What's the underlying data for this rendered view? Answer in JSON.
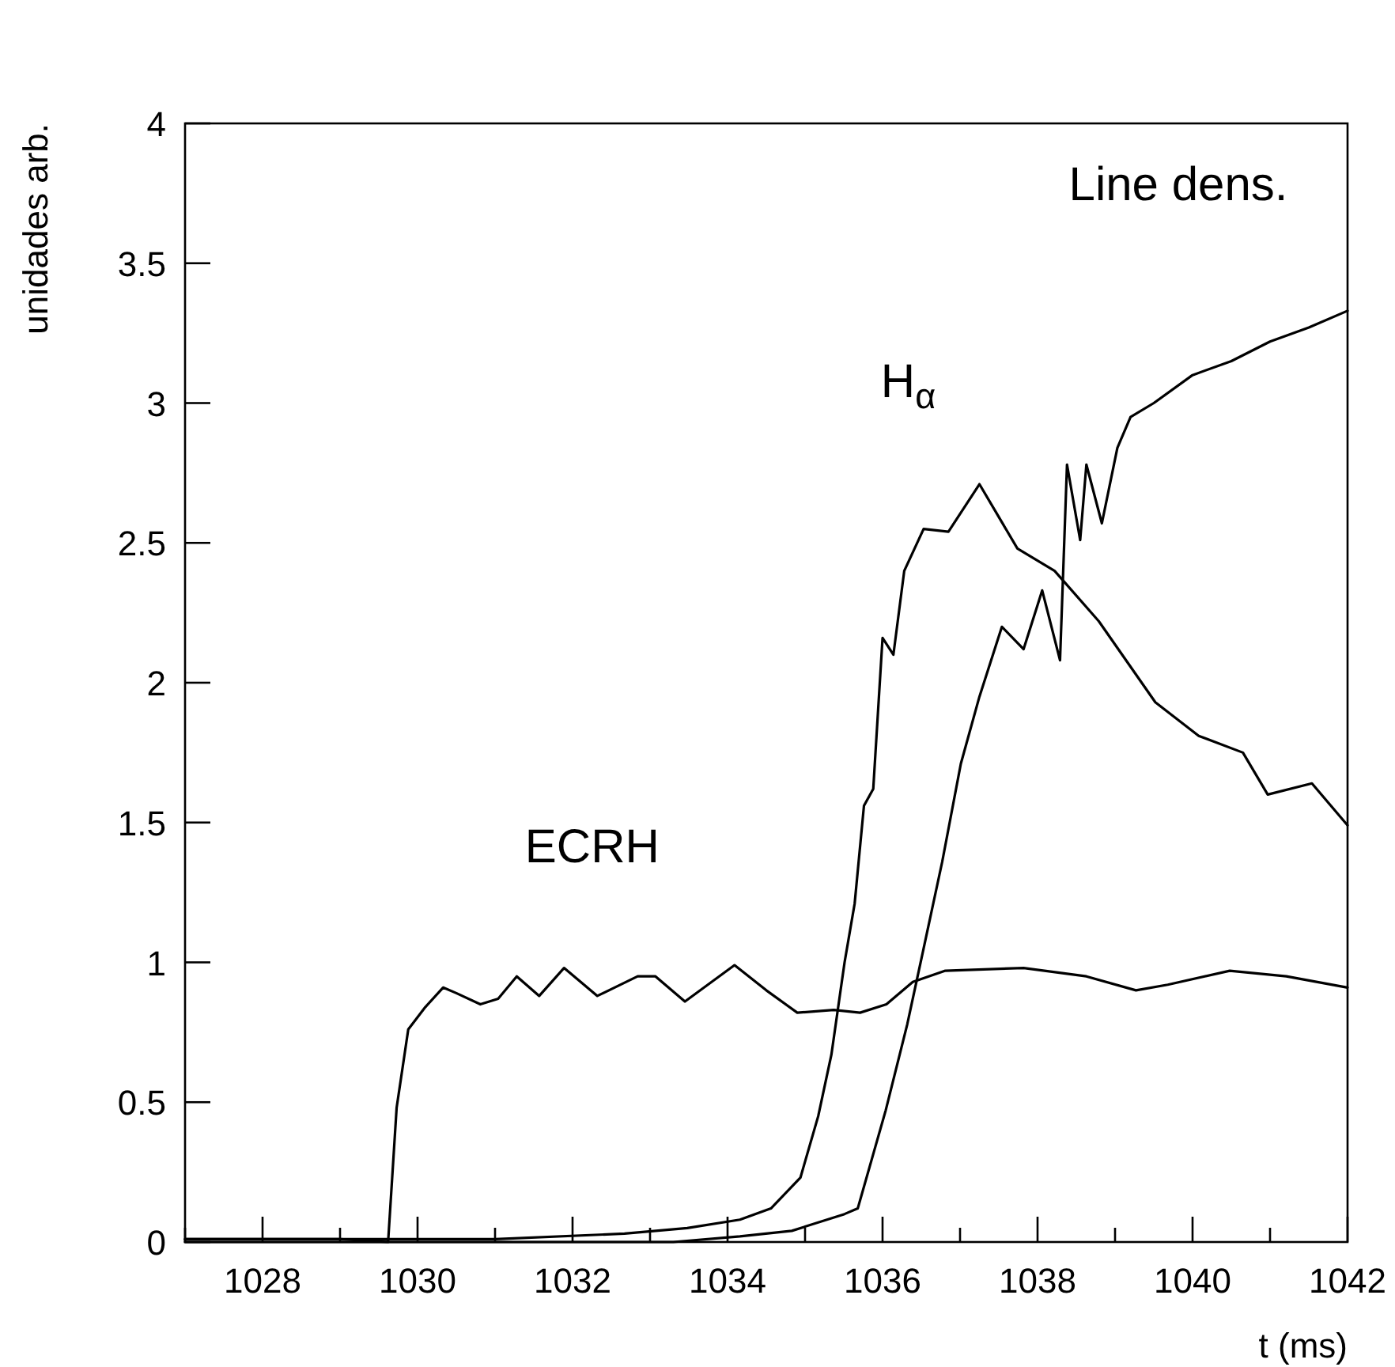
{
  "chart_data": {
    "type": "line",
    "xlabel": "t (ms)",
    "ylabel": "unidades arb.",
    "xlim": [
      1027,
      1042
    ],
    "ylim": [
      0,
      4
    ],
    "xticks": [
      {
        "value": 1027,
        "label": null
      },
      1028,
      {
        "value": 1029,
        "label": null
      },
      1030,
      {
        "value": 1031,
        "label": null
      },
      1032,
      {
        "value": 1033,
        "label": null
      },
      1034,
      {
        "value": 1035,
        "label": null
      },
      1036,
      {
        "value": 1037,
        "label": null
      },
      1038,
      {
        "value": 1039,
        "label": null
      },
      1040,
      {
        "value": 1041,
        "label": null
      },
      {
        "value": 1042,
        "label": "1042"
      }
    ],
    "yticks": [
      0,
      0.5,
      1,
      1.5,
      2,
      2.5,
      3,
      3.5,
      4
    ],
    "grid": false,
    "legend": false,
    "marker": "none",
    "line_style": "solid",
    "series": [
      {
        "name": "ECRH",
        "color": "#000000",
        "x": [
          1027,
          1028,
          1029,
          1029.62,
          1029.73,
          1029.88,
          1030.1,
          1030.33,
          1030.5,
          1030.81,
          1031.04,
          1031.28,
          1031.57,
          1031.89,
          1032.32,
          1032.84,
          1033.07,
          1033.45,
          1034.09,
          1034.5,
          1034.9,
          1035.37,
          1035.71,
          1036.05,
          1036.39,
          1036.81,
          1037.82,
          1038.63,
          1039.27,
          1039.68,
          1040.48,
          1041.21,
          1042
        ],
        "values": [
          0.01,
          0.01,
          0.01,
          0,
          0.48,
          0.76,
          0.84,
          0.91,
          0.89,
          0.85,
          0.87,
          0.95,
          0.88,
          0.98,
          0.88,
          0.95,
          0.95,
          0.86,
          0.99,
          0.9,
          0.82,
          0.83,
          0.82,
          0.85,
          0.93,
          0.97,
          0.98,
          0.95,
          0.9,
          0.92,
          0.97,
          0.95,
          0.91
        ]
      },
      {
        "name": "H$_{α}$",
        "color": "#000000",
        "x": [
          1027,
          1029,
          1031,
          1032.67,
          1033.48,
          1034.16,
          1034.56,
          1034.94,
          1035.17,
          1035.34,
          1035.51,
          1035.64,
          1035.76,
          1035.88,
          1036,
          1036.14,
          1036.28,
          1036.53,
          1036.85,
          1037.25,
          1037.74,
          1038.22,
          1038.79,
          1039.52,
          1040.08,
          1040.65,
          1040.97,
          1041.54,
          1042
        ],
        "values": [
          0.01,
          0.01,
          0.01,
          0.03,
          0.05,
          0.08,
          0.12,
          0.23,
          0.45,
          0.67,
          1,
          1.21,
          1.56,
          1.62,
          2.16,
          2.1,
          2.4,
          2.55,
          2.54,
          2.71,
          2.48,
          2.4,
          2.22,
          1.93,
          1.81,
          1.75,
          1.6,
          1.64,
          1.49
        ]
      },
      {
        "name": "Line dens.",
        "color": "#000000",
        "x": [
          1027,
          1030,
          1033.3,
          1034.16,
          1034.83,
          1035.51,
          1035.68,
          1036.04,
          1036.32,
          1036.53,
          1036.77,
          1037.01,
          1037.25,
          1037.54,
          1037.82,
          1038.06,
          1038.29,
          1038.38,
          1038.55,
          1038.63,
          1038.83,
          1039.03,
          1039.2,
          1039.5,
          1040,
          1040.5,
          1041,
          1041.5,
          1042
        ],
        "values": [
          0,
          0,
          0,
          0.02,
          0.04,
          0.1,
          0.12,
          0.47,
          0.78,
          1.05,
          1.36,
          1.71,
          1.95,
          2.2,
          2.12,
          2.33,
          2.08,
          2.78,
          2.51,
          2.78,
          2.57,
          2.84,
          2.95,
          3,
          3.1,
          3.15,
          3.22,
          3.27,
          3.33
        ]
      }
    ]
  }
}
